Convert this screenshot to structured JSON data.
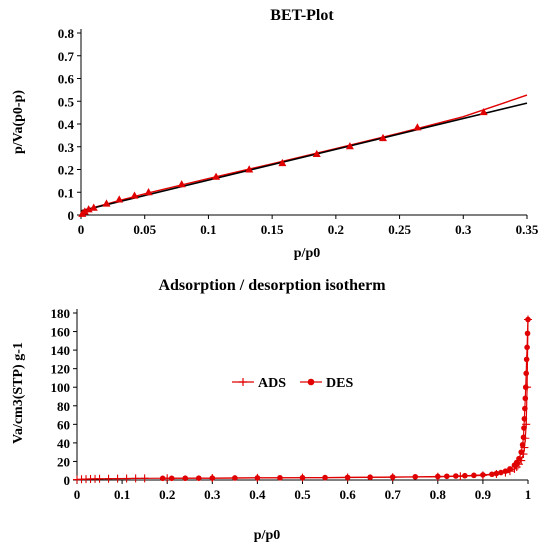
{
  "colors": {
    "red": "#e00000",
    "black": "#000000"
  },
  "chart_data": [
    {
      "type": "scatter",
      "title": "BET-Plot",
      "xlabel": "p/p0",
      "ylabel": "p/Va(p0-p)",
      "xlim": [
        0,
        0.35
      ],
      "ylim": [
        0,
        0.8
      ],
      "xticks": [
        "0",
        "0.05",
        "0.1",
        "0.15",
        "0.2",
        "0.25",
        "0.3",
        "0.35"
      ],
      "yticks": [
        "0",
        "0.1",
        "0.2",
        "0.3",
        "0.4",
        "0.5",
        "0.6",
        "0.7",
        "0.8"
      ],
      "series": [
        {
          "kind": "markers",
          "marker": "triangle",
          "color": "#e00000",
          "x": [
            0.001,
            0.003,
            0.006,
            0.01,
            0.02,
            0.03,
            0.042,
            0.053,
            0.079,
            0.106,
            0.132,
            0.158,
            0.185,
            0.211,
            0.237,
            0.264,
            0.316
          ],
          "y": [
            0.005,
            0.015,
            0.025,
            0.032,
            0.05,
            0.068,
            0.085,
            0.1,
            0.135,
            0.168,
            0.2,
            0.228,
            0.268,
            0.302,
            0.338,
            0.385,
            0.452
          ]
        },
        {
          "kind": "line",
          "color": "#e00000",
          "x": [
            0,
            0.05,
            0.1,
            0.15,
            0.2,
            0.25,
            0.3,
            0.35
          ],
          "y": [
            0.018,
            0.093,
            0.16,
            0.225,
            0.292,
            0.36,
            0.432,
            0.527
          ]
        },
        {
          "kind": "line",
          "color": "#000000",
          "x": [
            0,
            0.35
          ],
          "y": [
            0.018,
            0.492
          ]
        }
      ]
    },
    {
      "type": "line",
      "title": "Adsorption / desorption isotherm",
      "xlabel": "p/p0",
      "ylabel": "Va/cm3(STP) g-1",
      "xlim": [
        0,
        1
      ],
      "ylim": [
        0,
        180
      ],
      "xticks": [
        "0",
        "0.1",
        "0.2",
        "0.3",
        "0.4",
        "0.5",
        "0.6",
        "0.7",
        "0.8",
        "0.9",
        "1"
      ],
      "yticks": [
        "0",
        "20",
        "40",
        "60",
        "80",
        "100",
        "120",
        "140",
        "160",
        "180"
      ],
      "legend": {
        "placement": "center",
        "entries": [
          "ADS",
          "DES"
        ]
      },
      "series": [
        {
          "name": "ADS",
          "marker": "plus",
          "color": "#e00000",
          "x": [
            0.0,
            0.01,
            0.02,
            0.03,
            0.04,
            0.05,
            0.07,
            0.09,
            0.11,
            0.13,
            0.15,
            0.2,
            0.3,
            0.4,
            0.5,
            0.6,
            0.7,
            0.8,
            0.85,
            0.9,
            0.93,
            0.95,
            0.96,
            0.97,
            0.975,
            0.98,
            0.985,
            0.99,
            0.992,
            0.994,
            0.996,
            0.998,
            1.0
          ],
          "y": [
            0.5,
            0.8,
            1.0,
            1.1,
            1.2,
            1.3,
            1.4,
            1.5,
            1.6,
            1.7,
            1.8,
            1.9,
            2.1,
            2.3,
            2.5,
            2.7,
            3.0,
            3.5,
            4.0,
            5.0,
            6.5,
            8.0,
            9.5,
            12.0,
            14.0,
            17.0,
            21.0,
            28.0,
            35.0,
            45.0,
            60.0,
            100.0,
            173.0
          ]
        },
        {
          "name": "DES",
          "marker": "circle",
          "color": "#e00000",
          "x": [
            1.0,
            0.999,
            0.998,
            0.997,
            0.996,
            0.995,
            0.994,
            0.993,
            0.992,
            0.991,
            0.99,
            0.988,
            0.985,
            0.98,
            0.975,
            0.97,
            0.96,
            0.95,
            0.94,
            0.93,
            0.92,
            0.9,
            0.88,
            0.86,
            0.84,
            0.82,
            0.8,
            0.75,
            0.7,
            0.65,
            0.6,
            0.55,
            0.5,
            0.45,
            0.4,
            0.35,
            0.3,
            0.27,
            0.24,
            0.21,
            0.19
          ],
          "y": [
            173.0,
            158.0,
            143.0,
            130.0,
            115.0,
            100.0,
            88.0,
            77.0,
            66.0,
            56.0,
            46.0,
            38.0,
            30.0,
            23.0,
            19.0,
            16.0,
            12.0,
            9.5,
            8.0,
            7.0,
            6.2,
            5.5,
            5.0,
            4.6,
            4.3,
            4.0,
            3.8,
            3.5,
            3.2,
            3.0,
            2.8,
            2.6,
            2.5,
            2.4,
            2.3,
            2.2,
            2.1,
            2.0,
            1.9,
            1.8,
            1.8
          ]
        }
      ]
    }
  ]
}
